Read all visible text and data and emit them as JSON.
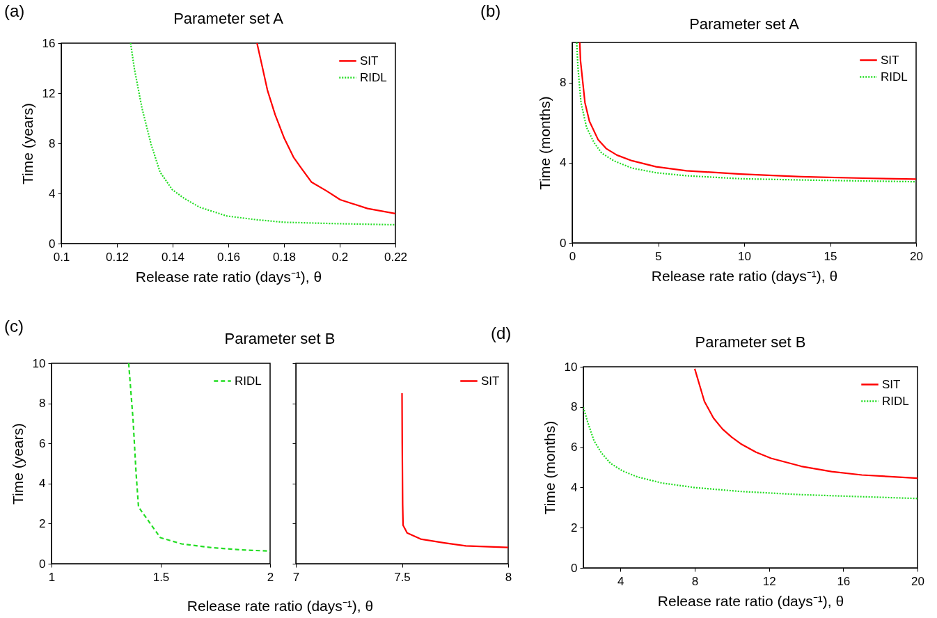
{
  "chart_data": [
    {
      "type": "line",
      "title": "Parameter set A",
      "xlabel": "Release rate ratio (days⁻¹), θ",
      "ylabel": "Time (years)",
      "annotations": [
        "(a)"
      ],
      "xlim": [
        0.1,
        0.22
      ],
      "xticks": [
        0.1,
        0.12,
        0.14,
        0.16,
        0.18,
        0.2,
        0.22
      ],
      "ylim": [
        0,
        16
      ],
      "yticks": [
        0,
        4,
        8,
        12,
        16
      ],
      "grid": false,
      "legend": "top right",
      "marker": "none",
      "series": [
        {
          "name": "SIT",
          "color": "#ff0000",
          "line_style": "solid",
          "x": [
            0.1703,
            0.172,
            0.1741,
            0.1768,
            0.1801,
            0.1834,
            0.1866,
            0.1899,
            0.1953,
            0.2002,
            0.21,
            0.22
          ],
          "values": [
            16,
            14.3,
            12.2,
            10.3,
            8.4,
            6.9,
            5.9,
            4.9,
            4.2,
            3.5,
            2.8,
            2.4
          ]
        },
        {
          "name": "RIDL",
          "color": "#22dd22",
          "line_style": "dotted",
          "x": [
            0.1249,
            0.1263,
            0.129,
            0.1323,
            0.1355,
            0.1399,
            0.1442,
            0.1497,
            0.1595,
            0.1703,
            0.1801,
            0.1975,
            0.22
          ],
          "values": [
            16,
            13.9,
            10.8,
            7.9,
            5.7,
            4.3,
            3.6,
            2.9,
            2.2,
            1.9,
            1.7,
            1.6,
            1.5
          ]
        }
      ]
    },
    {
      "type": "line",
      "title": "Parameter set A",
      "xlabel": "Release rate ratio (days⁻¹), θ",
      "ylabel": "Time (months)",
      "annotations": [
        "(b)"
      ],
      "xlim": [
        0,
        20
      ],
      "xticks": [
        0,
        5,
        10,
        15,
        20
      ],
      "ylim": [
        0,
        10
      ],
      "yticks": [
        0,
        4,
        8
      ],
      "grid": false,
      "legend": "top right",
      "marker": "none",
      "series": [
        {
          "name": "SIT",
          "color": "#ff0000",
          "line_style": "solid",
          "x": [
            0.44,
            0.48,
            0.74,
            1.0,
            1.5,
            1.97,
            2.6,
            3.47,
            4.88,
            6.64,
            9.8,
            13.3,
            16.9,
            20
          ],
          "values": [
            10,
            9.1,
            7.0,
            6.07,
            5.16,
            4.71,
            4.38,
            4.1,
            3.8,
            3.6,
            3.43,
            3.3,
            3.23,
            3.18
          ]
        },
        {
          "name": "RIDL",
          "color": "#22dd22",
          "line_style": "dotted",
          "x": [
            0.26,
            0.33,
            0.51,
            0.83,
            1.27,
            1.71,
            2.41,
            3.47,
            4.88,
            6.64,
            9.8,
            13.3,
            16.9,
            20
          ],
          "values": [
            10,
            8.8,
            7.0,
            5.77,
            5.0,
            4.48,
            4.1,
            3.73,
            3.5,
            3.35,
            3.2,
            3.14,
            3.09,
            3.05
          ]
        }
      ]
    },
    {
      "type": "line",
      "title": "Parameter set B",
      "xlabel": "Release rate ratio (days⁻¹), θ",
      "ylabel": "Time (years)",
      "annotations": [
        "(c)"
      ],
      "xlim": [
        1,
        2
      ],
      "xticks": [
        1,
        1.5,
        2
      ],
      "ylim": [
        0,
        10
      ],
      "yticks": [
        0,
        2,
        4,
        6,
        8,
        10
      ],
      "grid": false,
      "legend": "top right",
      "marker": "none",
      "series": [
        {
          "name": "RIDL",
          "color": "#22dd22",
          "line_style": "dashed",
          "x": [
            1.353,
            1.373,
            1.387,
            1.398,
            1.498,
            1.595,
            1.733,
            1.871,
            2
          ],
          "values": [
            10,
            7.2,
            4.5,
            2.83,
            1.3,
            0.99,
            0.8,
            0.69,
            0.63
          ]
        }
      ]
    },
    {
      "type": "line",
      "xlim": [
        7,
        8
      ],
      "xticks": [
        7,
        7.5,
        8
      ],
      "ylim": [
        0,
        10
      ],
      "yticks": [
        0,
        2,
        4,
        6,
        8,
        10
      ],
      "tick_labels": "x",
      "grid": false,
      "legend": "top right",
      "marker": "none",
      "series": [
        {
          "name": "SIT",
          "color": "#ff0000",
          "line_style": "solid",
          "x": [
            7.5,
            7.501,
            7.503,
            7.505,
            7.524,
            7.588,
            7.7,
            7.8,
            8
          ],
          "values": [
            8.51,
            5.99,
            2.98,
            1.92,
            1.54,
            1.23,
            1.04,
            0.89,
            0.81
          ]
        }
      ]
    },
    {
      "type": "line",
      "title": "Parameter set B",
      "xlabel": "Release rate ratio (days⁻¹), θ",
      "ylabel": "Time (months)",
      "annotations": [
        "(d)"
      ],
      "xlim": [
        2,
        20
      ],
      "xticks": [
        4,
        8,
        12,
        16,
        20
      ],
      "ylim": [
        0,
        10
      ],
      "yticks": [
        0,
        2,
        4,
        6,
        8,
        10
      ],
      "grid": false,
      "legend": "top right",
      "marker": "none",
      "series": [
        {
          "name": "SIT",
          "color": "#ff0000",
          "line_style": "solid",
          "x": [
            8,
            8.52,
            9.01,
            9.5,
            9.99,
            10.48,
            11.3,
            12.11,
            13.74,
            15.37,
            17.0,
            20
          ],
          "values": [
            9.9,
            8.28,
            7.45,
            6.9,
            6.5,
            6.17,
            5.75,
            5.45,
            5.05,
            4.79,
            4.62,
            4.46
          ]
        },
        {
          "name": "RIDL",
          "color": "#22dd22",
          "line_style": "dotted",
          "x": [
            2,
            2.24,
            2.57,
            2.97,
            3.46,
            4.11,
            4.93,
            6.23,
            8.03,
            10.48,
            13.74,
            17.0,
            20
          ],
          "values": [
            7.98,
            7.23,
            6.33,
            5.72,
            5.2,
            4.82,
            4.52,
            4.22,
            3.99,
            3.8,
            3.64,
            3.54,
            3.45
          ]
        }
      ]
    }
  ]
}
